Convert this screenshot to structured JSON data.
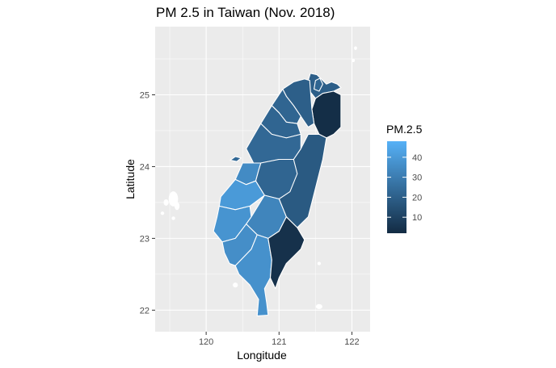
{
  "chart_data": {
    "type": "choropleth",
    "title": "PM 2.5 in Taiwan (Nov. 2018)",
    "xlabel": "Longitude",
    "ylabel": "Latitude",
    "xlim": [
      119.3,
      122.25
    ],
    "ylim": [
      21.7,
      25.95
    ],
    "x_ticks": [
      120,
      121,
      122
    ],
    "y_ticks": [
      22,
      23,
      24,
      25
    ],
    "x_tick_labels": [
      "120",
      "121",
      "122"
    ],
    "y_tick_labels": [
      "22",
      "23",
      "24",
      "25"
    ],
    "grid": true,
    "legend": {
      "title": "PM.2.5",
      "placement": "right",
      "range": [
        2,
        48
      ],
      "ticks": [
        10,
        20,
        30,
        40
      ],
      "tick_labels": [
        "10",
        "20",
        "30",
        "40"
      ],
      "color_low": "#132b43",
      "color_high": "#56b1f7"
    },
    "regions": [
      {
        "value": 20,
        "polygon": [
          [
            121.43,
            25.3
          ],
          [
            121.52,
            25.28
          ],
          [
            121.58,
            25.22
          ],
          [
            121.65,
            25.15
          ],
          [
            121.72,
            25.18
          ],
          [
            121.8,
            25.15
          ],
          [
            121.85,
            25.1
          ],
          [
            121.75,
            25.05
          ],
          [
            121.6,
            25.02
          ],
          [
            121.5,
            24.95
          ],
          [
            121.42,
            25.05
          ],
          [
            121.4,
            25.2
          ]
        ]
      },
      {
        "value": 22,
        "polygon": [
          [
            121.5,
            25.2
          ],
          [
            121.56,
            25.23
          ],
          [
            121.6,
            25.15
          ],
          [
            121.55,
            25.05
          ],
          [
            121.48,
            25.08
          ]
        ]
      },
      {
        "value": 3,
        "polygon": [
          [
            121.5,
            24.95
          ],
          [
            121.6,
            25.02
          ],
          [
            121.75,
            25.05
          ],
          [
            121.85,
            25.0
          ],
          [
            121.85,
            24.8
          ],
          [
            121.85,
            24.55
          ],
          [
            121.75,
            24.45
          ],
          [
            121.65,
            24.4
          ],
          [
            121.55,
            24.45
          ],
          [
            121.48,
            24.6
          ],
          [
            121.45,
            24.8
          ]
        ]
      },
      {
        "value": 20,
        "polygon": [
          [
            121.05,
            25.08
          ],
          [
            121.2,
            25.18
          ],
          [
            121.35,
            25.22
          ],
          [
            121.42,
            25.2
          ],
          [
            121.45,
            24.8
          ],
          [
            121.48,
            24.6
          ],
          [
            121.4,
            24.55
          ],
          [
            121.3,
            24.7
          ],
          [
            121.2,
            24.85
          ],
          [
            121.1,
            24.98
          ]
        ]
      },
      {
        "value": 22,
        "polygon": [
          [
            120.9,
            24.85
          ],
          [
            121.05,
            25.08
          ],
          [
            121.1,
            24.98
          ],
          [
            121.2,
            24.85
          ],
          [
            121.3,
            24.7
          ],
          [
            121.25,
            24.6
          ],
          [
            121.1,
            24.62
          ],
          [
            121.0,
            24.75
          ]
        ]
      },
      {
        "value": 18,
        "polygon": [
          [
            121.55,
            24.45
          ],
          [
            121.65,
            24.4
          ],
          [
            121.6,
            24.1
          ],
          [
            121.5,
            23.7
          ],
          [
            121.4,
            23.3
          ],
          [
            121.25,
            23.15
          ],
          [
            121.1,
            23.3
          ],
          [
            121.0,
            23.55
          ],
          [
            121.05,
            23.85
          ],
          [
            121.2,
            24.1
          ],
          [
            121.3,
            24.25
          ],
          [
            121.4,
            24.45
          ]
        ]
      },
      {
        "value": 22,
        "polygon": [
          [
            120.75,
            24.6
          ],
          [
            120.9,
            24.85
          ],
          [
            121.0,
            24.75
          ],
          [
            121.1,
            24.62
          ],
          [
            121.25,
            24.6
          ],
          [
            121.3,
            24.45
          ],
          [
            121.1,
            24.4
          ],
          [
            120.9,
            24.45
          ]
        ]
      },
      {
        "value": 23,
        "polygon": [
          [
            120.55,
            24.25
          ],
          [
            120.75,
            24.6
          ],
          [
            120.9,
            24.45
          ],
          [
            121.1,
            24.4
          ],
          [
            121.3,
            24.45
          ],
          [
            121.3,
            24.25
          ],
          [
            121.2,
            24.1
          ],
          [
            121.0,
            24.1
          ],
          [
            120.75,
            24.05
          ],
          [
            120.65,
            24.05
          ]
        ]
      },
      {
        "value": 22,
        "polygon": [
          [
            120.75,
            24.05
          ],
          [
            121.0,
            24.1
          ],
          [
            121.2,
            24.1
          ],
          [
            121.25,
            23.9
          ],
          [
            121.15,
            23.65
          ],
          [
            121.0,
            23.55
          ],
          [
            120.8,
            23.6
          ],
          [
            120.68,
            23.8
          ],
          [
            120.72,
            23.95
          ]
        ]
      },
      {
        "value": 35,
        "polygon": [
          [
            120.4,
            23.82
          ],
          [
            120.5,
            24.05
          ],
          [
            120.65,
            24.05
          ],
          [
            120.75,
            24.05
          ],
          [
            120.72,
            23.95
          ],
          [
            120.68,
            23.8
          ],
          [
            120.55,
            23.75
          ]
        ]
      },
      {
        "value": 40,
        "polygon": [
          [
            120.2,
            23.58
          ],
          [
            120.3,
            23.7
          ],
          [
            120.4,
            23.82
          ],
          [
            120.55,
            23.75
          ],
          [
            120.68,
            23.8
          ],
          [
            120.8,
            23.6
          ],
          [
            120.6,
            23.45
          ],
          [
            120.4,
            23.4
          ],
          [
            120.18,
            23.45
          ]
        ]
      },
      {
        "value": 38,
        "polygon": [
          [
            120.1,
            23.1
          ],
          [
            120.15,
            23.3
          ],
          [
            120.18,
            23.45
          ],
          [
            120.4,
            23.4
          ],
          [
            120.6,
            23.45
          ],
          [
            120.62,
            23.3
          ],
          [
            120.55,
            23.2
          ],
          [
            120.4,
            23.0
          ],
          [
            120.22,
            22.95
          ]
        ]
      },
      {
        "value": 33,
        "polygon": [
          [
            120.55,
            23.2
          ],
          [
            120.62,
            23.3
          ],
          [
            120.8,
            23.6
          ],
          [
            121.0,
            23.55
          ],
          [
            121.1,
            23.3
          ],
          [
            121.0,
            23.1
          ],
          [
            120.85,
            23.0
          ],
          [
            120.7,
            23.05
          ]
        ]
      },
      {
        "value": 36,
        "polygon": [
          [
            120.22,
            22.95
          ],
          [
            120.4,
            23.0
          ],
          [
            120.55,
            23.2
          ],
          [
            120.7,
            23.05
          ],
          [
            120.62,
            22.85
          ],
          [
            120.4,
            22.62
          ],
          [
            120.32,
            22.65
          ],
          [
            120.25,
            22.8
          ]
        ]
      },
      {
        "value": 37,
        "polygon": [
          [
            120.4,
            22.62
          ],
          [
            120.62,
            22.85
          ],
          [
            120.7,
            23.05
          ],
          [
            120.85,
            23.0
          ],
          [
            120.9,
            22.7
          ],
          [
            120.88,
            22.45
          ],
          [
            120.8,
            22.3
          ],
          [
            120.83,
            22.1
          ],
          [
            120.85,
            21.93
          ],
          [
            120.7,
            21.92
          ],
          [
            120.72,
            22.15
          ],
          [
            120.6,
            22.35
          ],
          [
            120.45,
            22.5
          ]
        ]
      },
      {
        "value": 4,
        "polygon": [
          [
            120.85,
            23.0
          ],
          [
            121.0,
            23.1
          ],
          [
            121.1,
            23.3
          ],
          [
            121.25,
            23.15
          ],
          [
            121.35,
            22.98
          ],
          [
            121.3,
            22.85
          ],
          [
            121.2,
            22.75
          ],
          [
            121.1,
            22.65
          ],
          [
            121.0,
            22.45
          ],
          [
            120.95,
            22.3
          ],
          [
            120.88,
            22.45
          ],
          [
            120.9,
            22.7
          ]
        ]
      },
      {
        "value": 23,
        "polygon": [
          [
            120.33,
            24.09
          ],
          [
            120.4,
            24.14
          ],
          [
            120.48,
            24.12
          ],
          [
            120.42,
            24.07
          ]
        ]
      }
    ]
  }
}
